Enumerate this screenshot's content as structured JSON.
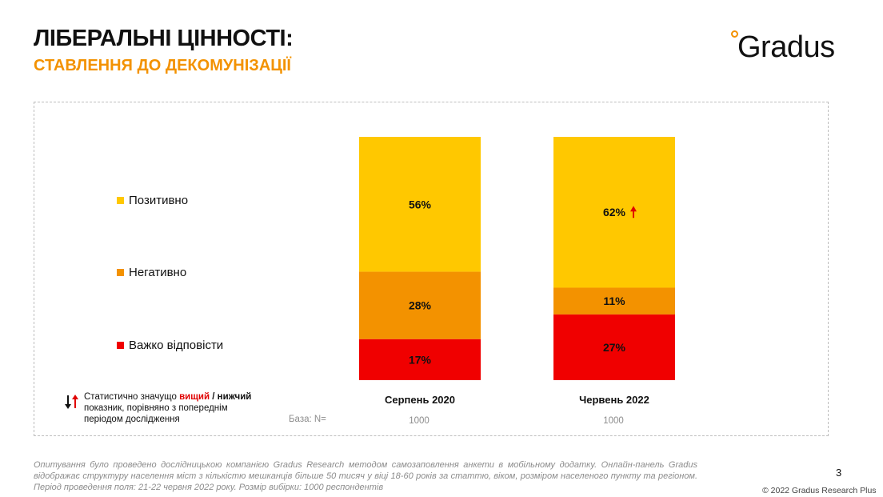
{
  "header": {
    "title": "ЛІБЕРАЛЬНІ ЦІННОСТІ:",
    "subtitle": "СТАВЛЕННЯ ДО ДЕКОМУНІЗАЦІЇ",
    "logo_text": "Gradus",
    "brand_color": "#f39200"
  },
  "chart_data": {
    "type": "bar",
    "stacked": true,
    "percent_stacked": true,
    "categories": [
      "Серпень 2020",
      "Червень 2022"
    ],
    "series": [
      {
        "name": "Позитивно",
        "color": "#ffc800",
        "values": [
          56,
          62
        ]
      },
      {
        "name": "Негативно",
        "color": "#f39200",
        "values": [
          28,
          11
        ]
      },
      {
        "name": "Важко відповісти",
        "color": "#f00000",
        "values": [
          17,
          27
        ]
      }
    ],
    "data_labels": [
      [
        "56%",
        "28%",
        "17%"
      ],
      [
        "62%",
        "11%",
        "27%"
      ]
    ],
    "significance": [
      {
        "category": "Червень 2022",
        "series": "Позитивно",
        "direction": "up"
      }
    ],
    "legend_position": "left",
    "grid": false,
    "base_label": "База: N=",
    "base_values": [
      "1000",
      "1000"
    ]
  },
  "note": {
    "prefix": "Статистично значущо ",
    "higher": "вищий",
    "sep": " / ",
    "lower": "нижчий",
    "rest": "показник, порівняно з попереднім періодом дослідження"
  },
  "footer": {
    "text": "Опитування було проведено дослідницькою компанією Gradus Research методом самозаповлення анкети в мобільному додатку. Онлайн-панель Gradus відображає структуру населення міст з кількістю мешканців більше 50 тисяч у віці 18-60 років за статтю, віком, розміром населеного пункту та регіоном. Період проведення поля: 21-22 червня 2022 року. Розмір вибірки: 1000 респондентів",
    "page_number": "3",
    "copyright": "© 2022 Gradus Research Plus"
  }
}
